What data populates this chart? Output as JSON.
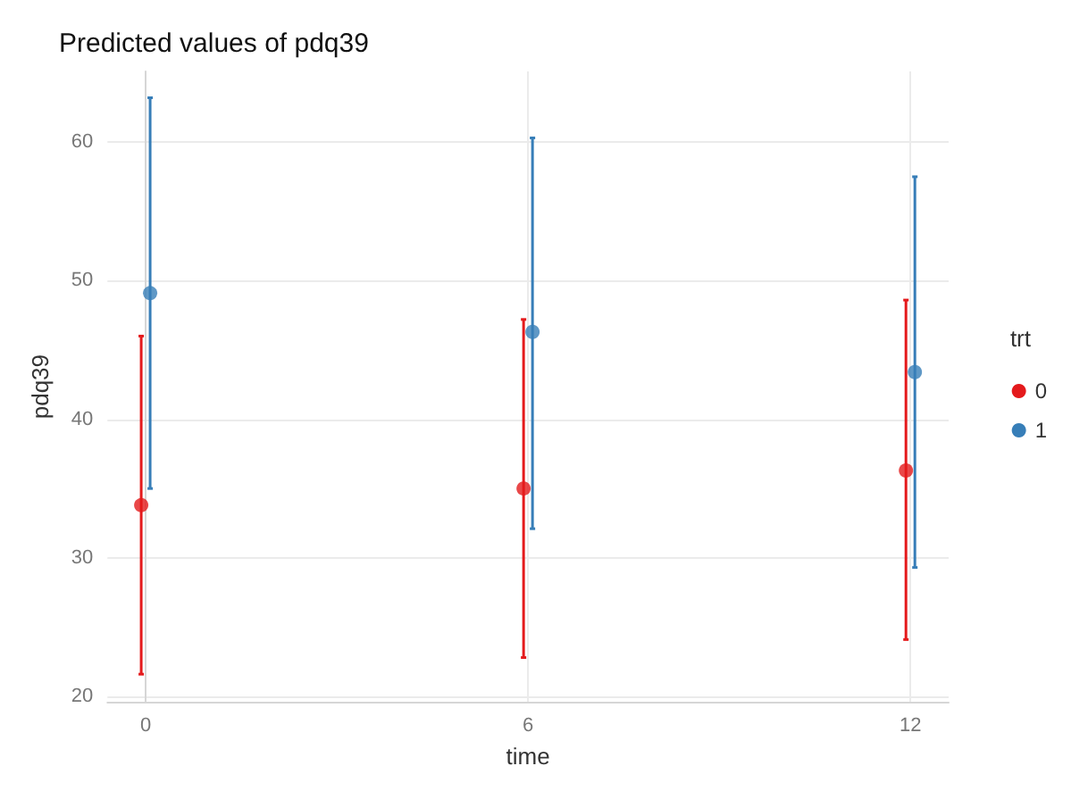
{
  "chart_data": {
    "type": "scatter",
    "title": "Predicted values of pdq39",
    "xlabel": "time",
    "ylabel": "pdq39",
    "legend_title": "trt",
    "series": [
      {
        "name": "0",
        "color": "#e41a1c",
        "x": [
          -0.07,
          5.93,
          11.93
        ],
        "values": [
          33.8,
          35.0,
          36.3
        ],
        "errors": [
          [
            21.6,
            46.0
          ],
          [
            22.8,
            47.2
          ],
          [
            24.1,
            48.6
          ]
        ]
      },
      {
        "name": "1",
        "color": "#377eb8",
        "x": [
          0.07,
          6.07,
          12.07
        ],
        "values": [
          49.1,
          46.3,
          43.4
        ],
        "errors": [
          [
            35.0,
            63.2
          ],
          [
            32.1,
            60.3
          ],
          [
            29.3,
            57.5
          ]
        ]
      }
    ],
    "xlim": [
      -0.6,
      12.6
    ],
    "xticks": [
      0,
      6,
      12
    ],
    "ylim": [
      19.6,
      65.1
    ],
    "yticks": [
      20,
      30,
      40,
      50,
      60
    ],
    "grid": true,
    "legend": "right",
    "marker": "circle"
  }
}
